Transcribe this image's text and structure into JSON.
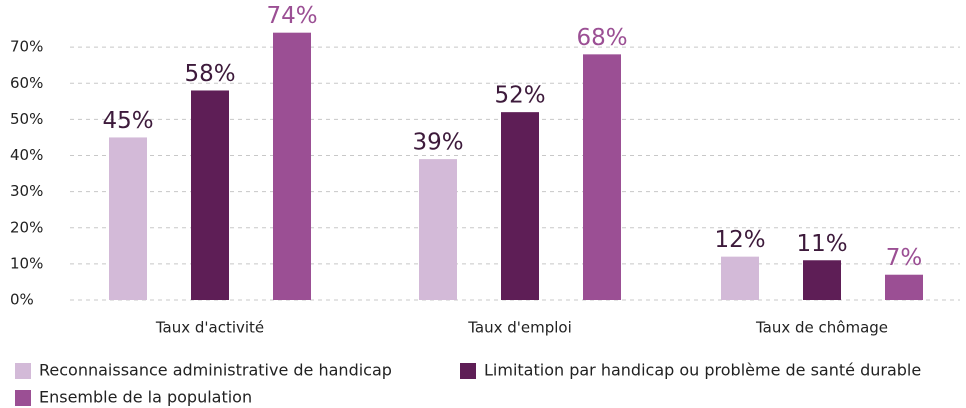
{
  "chart_data": {
    "type": "bar",
    "categories": [
      "Taux d'activité",
      "Taux d'emploi",
      "Taux de chômage"
    ],
    "series": [
      {
        "name": "Reconnaissance administrative de handicap",
        "color": "#d3bad8",
        "label_color": "#3d1a3b",
        "values": [
          45,
          39,
          12
        ],
        "value_labels": [
          "45%",
          "39%",
          "12%"
        ]
      },
      {
        "name": "Limitation par handicap ou problème de santé durable",
        "color": "#5e1e56",
        "label_color": "#3d1a3b",
        "values": [
          58,
          52,
          11
        ],
        "value_labels": [
          "58%",
          "52%",
          "11%"
        ]
      },
      {
        "name": "Ensemble de la population",
        "color": "#9b4f94",
        "label_color": "#9b4f94",
        "values": [
          74,
          68,
          7
        ],
        "value_labels": [
          "74%",
          "68%",
          "7%"
        ]
      }
    ],
    "ylim": [
      0,
      80
    ],
    "yticks": [
      {
        "value": 0,
        "label": "0%"
      },
      {
        "value": 10,
        "label": "10%"
      },
      {
        "value": 20,
        "label": "20%"
      },
      {
        "value": 30,
        "label": "30%"
      },
      {
        "value": 40,
        "label": "40%"
      },
      {
        "value": 50,
        "label": "50%"
      },
      {
        "value": 60,
        "label": "60%"
      },
      {
        "value": 70,
        "label": "70%"
      }
    ],
    "grid": true
  }
}
